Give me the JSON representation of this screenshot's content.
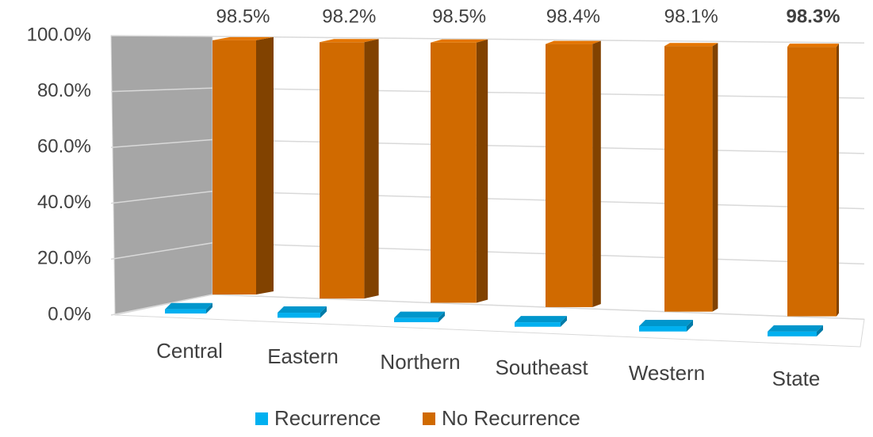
{
  "chart_data": {
    "type": "bar3d",
    "categories": [
      "Central",
      "Eastern",
      "Northern",
      "Southeast",
      "Western",
      "State"
    ],
    "series": [
      {
        "name": "Recurrence",
        "color": "#00b0f0",
        "values": [
          1.5,
          1.8,
          1.5,
          1.6,
          1.9,
          1.7
        ]
      },
      {
        "name": "No Recurrence",
        "color": "#d06a00",
        "values": [
          98.5,
          98.2,
          98.5,
          98.4,
          98.1,
          98.3
        ],
        "value_labels": [
          "98.5%",
          "98.2%",
          "98.5%",
          "98.4%",
          "98.1%",
          "98.3%"
        ],
        "value_labels_bold": [
          false,
          false,
          false,
          false,
          false,
          true
        ]
      }
    ],
    "ylim": [
      0,
      100
    ],
    "yticks": [
      {
        "value": 0,
        "label": "0.0%"
      },
      {
        "value": 20,
        "label": "20.0%"
      },
      {
        "value": 40,
        "label": "40.0%"
      },
      {
        "value": 60,
        "label": "60.0%"
      },
      {
        "value": 80,
        "label": "80.0%"
      },
      {
        "value": 100,
        "label": "100.0%"
      }
    ],
    "grid": true,
    "legend": "bottom"
  }
}
